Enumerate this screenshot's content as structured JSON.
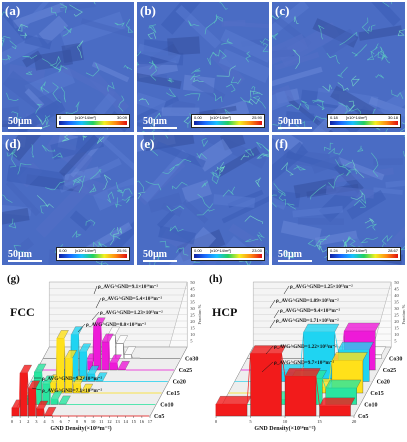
{
  "figure": {
    "panels": [
      {
        "id": "a",
        "label": "(a)",
        "scale": "50μm",
        "cbar_min": "0",
        "cbar_unit": "[x10^14/m²]",
        "cbar_max": "30.09"
      },
      {
        "id": "b",
        "label": "(b)",
        "scale": "50μm",
        "cbar_min": "0.00",
        "cbar_unit": "[x10^14/m²]",
        "cbar_max": "25.90"
      },
      {
        "id": "c",
        "label": "(c)",
        "scale": "50μm",
        "cbar_min": "0.18",
        "cbar_unit": "[x10^14/m²]",
        "cbar_max": "30.18"
      },
      {
        "id": "d",
        "label": "(d)",
        "scale": "50μm",
        "cbar_min": "0.00",
        "cbar_unit": "[x10^14/m²]",
        "cbar_max": "25.91"
      },
      {
        "id": "e",
        "label": "(e)",
        "scale": "50μm",
        "cbar_min": "0.00",
        "cbar_unit": "[x10^14/m²]",
        "cbar_max": "23.00"
      },
      {
        "id": "f",
        "label": "(f)",
        "scale": "50μm",
        "cbar_min": "0.24",
        "cbar_unit": "[x10^14/m²]",
        "cbar_max": "28.67"
      }
    ]
  },
  "chart_data": [
    {
      "type": "bar",
      "panel": "(g)",
      "title": "FCC",
      "xlabel": "GND Density(×10¹⁴m⁻²)",
      "ylabel": "Fraction %",
      "x_ticks": [
        "0",
        "1",
        "2",
        "3",
        "4",
        "5",
        "6",
        "7",
        "8",
        "9",
        "10",
        "11",
        "12",
        "13",
        "14",
        "15",
        "16",
        "17"
      ],
      "y_ticks": [
        "5",
        "10",
        "15",
        "20",
        "25",
        "30",
        "35",
        "40",
        "45",
        "50"
      ],
      "series": [
        {
          "name": "Co5",
          "color": "#f21b1b",
          "rho_label": "ρ_AVG^GND=7.1×10¹⁴m⁻²",
          "peak_x": 1,
          "peak_frac": 33
        },
        {
          "name": "Co10",
          "color": "#29e6a0",
          "rho_label": "ρ_AVG^GND=9.2×10¹⁴m⁻²",
          "peak_x": 2,
          "peak_frac": 25
        },
        {
          "name": "Co15",
          "color": "#ffe11a",
          "rho_label": "ρ_AVG^GND=8.0×10¹⁴m⁻²",
          "peak_x": 4,
          "peak_frac": 42
        },
        {
          "name": "Co20",
          "color": "#1fd4f2",
          "rho_label": "ρ_AVG^GND=1.23×10¹⁵m⁻²",
          "peak_x": 5,
          "peak_frac": 36
        },
        {
          "name": "Co25",
          "color": "#ee1ad8",
          "rho_label": "ρ_AVG^GND=5.4×10¹⁴m⁻²",
          "peak_x": 7,
          "peak_frac": 34
        },
        {
          "name": "Co30",
          "color": "#ffffff",
          "rho_label": "ρ_AVG^GND=9.1×10¹⁴m⁻²",
          "peak_x": 8,
          "peak_frac": 18
        }
      ]
    },
    {
      "type": "bar",
      "panel": "(h)",
      "title": "HCP",
      "xlabel": "GND Density(×10¹⁴m⁻²)",
      "ylabel": "Fraction %",
      "x_ticks": [
        "0",
        "5",
        "10",
        "15",
        "20"
      ],
      "y_ticks": [
        "5",
        "10",
        "15",
        "20",
        "25",
        "30",
        "35",
        "40",
        "45",
        "50"
      ],
      "series": [
        {
          "name": "Co5",
          "color": "#f21b1b",
          "rho_label": "ρ_AVG^GND=9.7×10¹⁴m⁻²",
          "peak_x": 1,
          "peak_frac": 48
        },
        {
          "name": "Co10",
          "color": "#29e6a0",
          "rho_label": "ρ_AVG^GND=1.22×10¹⁵m⁻²",
          "peak_x": 2,
          "peak_frac": 20
        },
        {
          "name": "Co15",
          "color": "#ffe11a",
          "rho_label": "ρ_AVG^GND=1.71×10¹⁵m⁻²",
          "peak_x": 3,
          "peak_frac": 25
        },
        {
          "name": "Co20",
          "color": "#1fd4f2",
          "rho_label": "ρ_AVG^GND=9.4×10¹⁴m⁻²",
          "peak_x": 2,
          "peak_frac": 38
        },
        {
          "name": "Co25",
          "color": "#ee1ad8",
          "rho_label": "ρ_AVG^GND=1.09×10¹⁵m⁻²",
          "peak_x": 3,
          "peak_frac": 30
        },
        {
          "name": "Co30",
          "color": "#ffffff",
          "rho_label": "ρ_AVG^GND=1.25×10¹⁵m⁻²",
          "peak_x": 4,
          "peak_frac": 15
        }
      ]
    }
  ]
}
